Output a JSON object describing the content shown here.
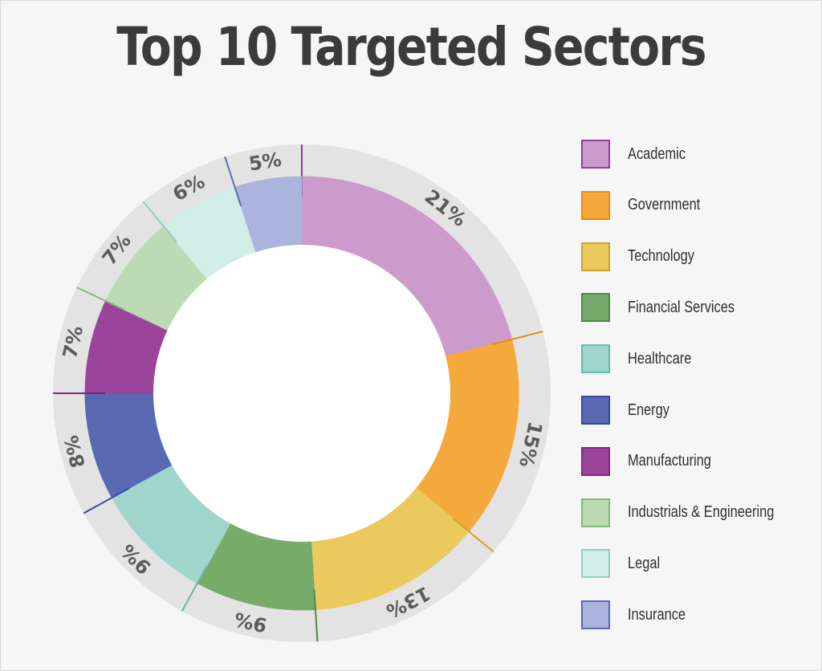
{
  "title": "Top 10 Targeted Sectors",
  "chart_data": {
    "type": "pie",
    "variant": "donut",
    "legend_position": "right",
    "slices": [
      {
        "name": "Academic",
        "value": 21,
        "label": "21%",
        "color": "#cd9bcb",
        "edge": "#8e3f98"
      },
      {
        "name": "Government",
        "value": 15,
        "label": "15%",
        "color": "#f5a93c",
        "edge": "#f08a00"
      },
      {
        "name": "Technology",
        "value": 13,
        "label": "13%",
        "color": "#ecc95c",
        "edge": "#c9a52a"
      },
      {
        "name": "Financial Services",
        "value": 9,
        "label": "9%",
        "color": "#76ab6c",
        "edge": "#4e8a44"
      },
      {
        "name": "Healthcare",
        "value": 9,
        "label": "9%",
        "color": "#9fd5cb",
        "edge": "#66b8a8"
      },
      {
        "name": "Energy",
        "value": 8,
        "label": "8%",
        "color": "#5868b3",
        "edge": "#3a489a"
      },
      {
        "name": "Manufacturing",
        "value": 7,
        "label": "7%",
        "color": "#9b449b",
        "edge": "#7a2a7a"
      },
      {
        "name": "Industrials & Engineering",
        "value": 7,
        "label": "7%",
        "color": "#bcdbb5",
        "edge": "#82b877"
      },
      {
        "name": "Legal",
        "value": 6,
        "label": "6%",
        "color": "#d2ece8",
        "edge": "#90cfc4"
      },
      {
        "name": "Insurance",
        "value": 5,
        "label": "5%",
        "color": "#aab4dc",
        "edge": "#5d6ab5"
      }
    ]
  }
}
